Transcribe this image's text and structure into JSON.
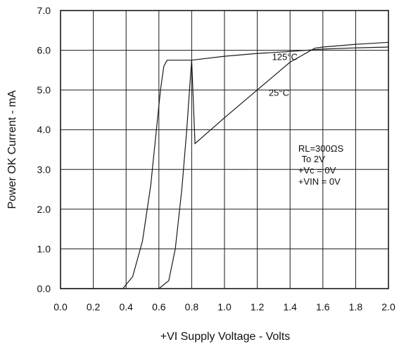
{
  "chart_data": {
    "type": "line",
    "title": "",
    "xlabel": "+VI Supply Voltage - Volts",
    "ylabel": "Power OK Current - mA",
    "xlim": [
      0.0,
      2.0
    ],
    "ylim": [
      0.0,
      7.0
    ],
    "grid": true,
    "x_ticks": [
      "0.0",
      "0.2",
      "0.4",
      "0.6",
      "0.8",
      "1.0",
      "1.2",
      "1.4",
      "1.6",
      "1.8",
      "2.0"
    ],
    "y_ticks": [
      "0.0",
      "1.0",
      "2.0",
      "3.0",
      "4.0",
      "5.0",
      "6.0",
      "7.0"
    ],
    "series": [
      {
        "name": "125°C",
        "x": [
          0.0,
          0.38,
          0.44,
          0.5,
          0.55,
          0.58,
          0.61,
          0.63,
          0.65,
          0.66,
          0.7,
          0.8,
          1.0,
          1.2,
          1.4,
          1.6,
          1.8,
          2.0
        ],
        "y": [
          0.0,
          0.0,
          0.3,
          1.2,
          2.6,
          3.8,
          5.0,
          5.6,
          5.75,
          5.75,
          5.75,
          5.75,
          5.85,
          5.92,
          5.97,
          6.03,
          6.06,
          6.08
        ]
      },
      {
        "name": "25°C",
        "x": [
          0.6,
          0.66,
          0.7,
          0.74,
          0.77,
          0.79,
          0.8,
          0.82,
          1.0,
          1.2,
          1.4,
          1.55,
          1.6,
          1.8,
          2.0
        ],
        "y": [
          0.0,
          0.2,
          1.0,
          2.5,
          4.0,
          5.2,
          5.75,
          3.65,
          4.3,
          5.0,
          5.7,
          6.05,
          6.08,
          6.15,
          6.2
        ]
      }
    ],
    "annotations": [
      {
        "text": "125°C",
        "x": 1.29,
        "y": 5.75
      },
      {
        "text": "25°C",
        "x": 1.27,
        "y": 4.85
      },
      {
        "text": "RL=300ΩS",
        "x": 1.45,
        "y": 3.45
      },
      {
        "text": "To 2V",
        "x": 1.47,
        "y": 3.18
      },
      {
        "text": "+Vc = 0V",
        "x": 1.45,
        "y": 2.9
      },
      {
        "text": "+VIN = 0V",
        "x": 1.45,
        "y": 2.62
      }
    ]
  }
}
